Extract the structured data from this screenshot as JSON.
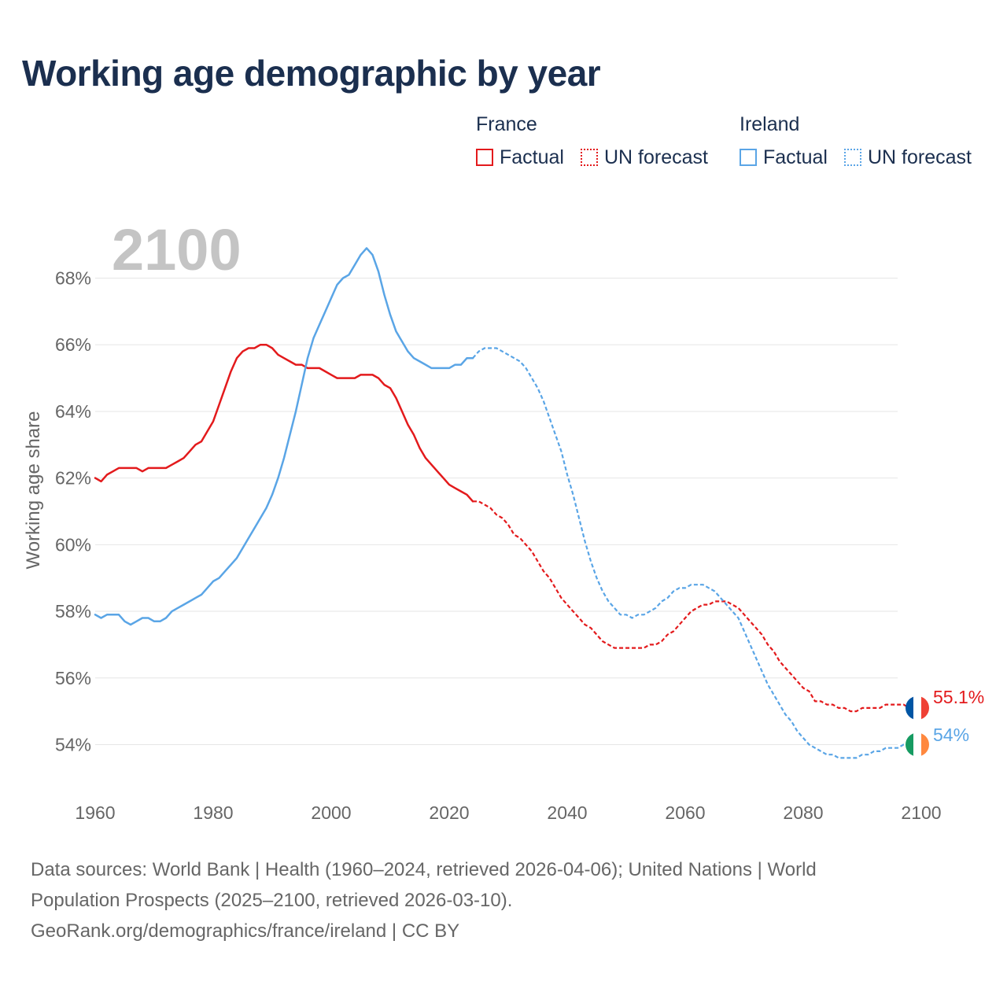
{
  "title": "Working age demographic by year",
  "legend": {
    "groups": [
      {
        "name": "France",
        "color": "#e31a1c",
        "factual": "Factual",
        "forecast": "UN forecast"
      },
      {
        "name": "Ireland",
        "color": "#5aa5e6",
        "factual": "Factual",
        "forecast": "UN forecast"
      }
    ]
  },
  "chart_data": {
    "type": "line",
    "title": "Working age demographic by year",
    "ylabel": "Working age share",
    "xlabel": "",
    "xlim": [
      1960,
      2100
    ],
    "ylim": [
      52.5,
      69.5
    ],
    "x_ticks": [
      1960,
      1980,
      2000,
      2020,
      2040,
      2060,
      2080,
      2100
    ],
    "x_tick_labels": [
      "1960",
      "1980",
      "2000",
      "2020",
      "2040",
      "2060",
      "2080",
      "2100"
    ],
    "y_ticks": [
      54,
      56,
      58,
      60,
      62,
      64,
      66,
      68
    ],
    "y_tick_labels": [
      "54%",
      "56%",
      "58%",
      "60%",
      "62%",
      "64%",
      "66%",
      "68%"
    ],
    "year_watermark": "2100",
    "factual_end_year": 2024,
    "series": [
      {
        "name": "France",
        "color": "#e31a1c",
        "flag": [
          "#0055a4",
          "#ffffff",
          "#ef4135"
        ],
        "end_label": "55.1%",
        "points": [
          [
            1960,
            62.0
          ],
          [
            1961,
            61.9
          ],
          [
            1962,
            62.1
          ],
          [
            1963,
            62.2
          ],
          [
            1964,
            62.3
          ],
          [
            1965,
            62.3
          ],
          [
            1966,
            62.3
          ],
          [
            1967,
            62.3
          ],
          [
            1968,
            62.2
          ],
          [
            1969,
            62.3
          ],
          [
            1970,
            62.3
          ],
          [
            1971,
            62.3
          ],
          [
            1972,
            62.3
          ],
          [
            1973,
            62.4
          ],
          [
            1974,
            62.5
          ],
          [
            1975,
            62.6
          ],
          [
            1976,
            62.8
          ],
          [
            1977,
            63.0
          ],
          [
            1978,
            63.1
          ],
          [
            1979,
            63.4
          ],
          [
            1980,
            63.7
          ],
          [
            1981,
            64.2
          ],
          [
            1982,
            64.7
          ],
          [
            1983,
            65.2
          ],
          [
            1984,
            65.6
          ],
          [
            1985,
            65.8
          ],
          [
            1986,
            65.9
          ],
          [
            1987,
            65.9
          ],
          [
            1988,
            66.0
          ],
          [
            1989,
            66.0
          ],
          [
            1990,
            65.9
          ],
          [
            1991,
            65.7
          ],
          [
            1992,
            65.6
          ],
          [
            1993,
            65.5
          ],
          [
            1994,
            65.4
          ],
          [
            1995,
            65.4
          ],
          [
            1996,
            65.3
          ],
          [
            1997,
            65.3
          ],
          [
            1998,
            65.3
          ],
          [
            1999,
            65.2
          ],
          [
            2000,
            65.1
          ],
          [
            2001,
            65.0
          ],
          [
            2002,
            65.0
          ],
          [
            2003,
            65.0
          ],
          [
            2004,
            65.0
          ],
          [
            2005,
            65.1
          ],
          [
            2006,
            65.1
          ],
          [
            2007,
            65.1
          ],
          [
            2008,
            65.0
          ],
          [
            2009,
            64.8
          ],
          [
            2010,
            64.7
          ],
          [
            2011,
            64.4
          ],
          [
            2012,
            64.0
          ],
          [
            2013,
            63.6
          ],
          [
            2014,
            63.3
          ],
          [
            2015,
            62.9
          ],
          [
            2016,
            62.6
          ],
          [
            2017,
            62.4
          ],
          [
            2018,
            62.2
          ],
          [
            2019,
            62.0
          ],
          [
            2020,
            61.8
          ],
          [
            2021,
            61.7
          ],
          [
            2022,
            61.6
          ],
          [
            2023,
            61.5
          ],
          [
            2024,
            61.3
          ],
          [
            2025,
            61.3
          ],
          [
            2026,
            61.2
          ],
          [
            2027,
            61.1
          ],
          [
            2028,
            60.9
          ],
          [
            2029,
            60.8
          ],
          [
            2030,
            60.6
          ],
          [
            2031,
            60.3
          ],
          [
            2032,
            60.2
          ],
          [
            2033,
            60.0
          ],
          [
            2034,
            59.8
          ],
          [
            2035,
            59.5
          ],
          [
            2036,
            59.2
          ],
          [
            2037,
            59.0
          ],
          [
            2038,
            58.7
          ],
          [
            2039,
            58.4
          ],
          [
            2040,
            58.2
          ],
          [
            2041,
            58.0
          ],
          [
            2042,
            57.8
          ],
          [
            2043,
            57.6
          ],
          [
            2044,
            57.5
          ],
          [
            2045,
            57.3
          ],
          [
            2046,
            57.1
          ],
          [
            2047,
            57.0
          ],
          [
            2048,
            56.9
          ],
          [
            2049,
            56.9
          ],
          [
            2050,
            56.9
          ],
          [
            2051,
            56.9
          ],
          [
            2052,
            56.9
          ],
          [
            2053,
            56.9
          ],
          [
            2054,
            57.0
          ],
          [
            2055,
            57.0
          ],
          [
            2056,
            57.1
          ],
          [
            2057,
            57.3
          ],
          [
            2058,
            57.4
          ],
          [
            2059,
            57.6
          ],
          [
            2060,
            57.8
          ],
          [
            2061,
            58.0
          ],
          [
            2062,
            58.1
          ],
          [
            2063,
            58.2
          ],
          [
            2064,
            58.2
          ],
          [
            2065,
            58.3
          ],
          [
            2066,
            58.3
          ],
          [
            2067,
            58.3
          ],
          [
            2068,
            58.2
          ],
          [
            2069,
            58.1
          ],
          [
            2070,
            57.9
          ],
          [
            2071,
            57.7
          ],
          [
            2072,
            57.5
          ],
          [
            2073,
            57.3
          ],
          [
            2074,
            57.0
          ],
          [
            2075,
            56.8
          ],
          [
            2076,
            56.5
          ],
          [
            2077,
            56.3
          ],
          [
            2078,
            56.1
          ],
          [
            2079,
            55.9
          ],
          [
            2080,
            55.7
          ],
          [
            2081,
            55.6
          ],
          [
            2082,
            55.3
          ],
          [
            2083,
            55.3
          ],
          [
            2084,
            55.2
          ],
          [
            2085,
            55.2
          ],
          [
            2086,
            55.1
          ],
          [
            2087,
            55.1
          ],
          [
            2088,
            55.0
          ],
          [
            2089,
            55.0
          ],
          [
            2090,
            55.1
          ],
          [
            2091,
            55.1
          ],
          [
            2092,
            55.1
          ],
          [
            2093,
            55.1
          ],
          [
            2094,
            55.2
          ],
          [
            2095,
            55.2
          ],
          [
            2096,
            55.2
          ],
          [
            2097,
            55.2
          ],
          [
            2098,
            55.1
          ],
          [
            2099,
            55.1
          ],
          [
            2100,
            55.1
          ]
        ]
      },
      {
        "name": "Ireland",
        "color": "#5aa5e6",
        "flag": [
          "#169b62",
          "#ffffff",
          "#ff883e"
        ],
        "end_label": "54%",
        "points": [
          [
            1960,
            57.9
          ],
          [
            1961,
            57.8
          ],
          [
            1962,
            57.9
          ],
          [
            1963,
            57.9
          ],
          [
            1964,
            57.9
          ],
          [
            1965,
            57.7
          ],
          [
            1966,
            57.6
          ],
          [
            1967,
            57.7
          ],
          [
            1968,
            57.8
          ],
          [
            1969,
            57.8
          ],
          [
            1970,
            57.7
          ],
          [
            1971,
            57.7
          ],
          [
            1972,
            57.8
          ],
          [
            1973,
            58.0
          ],
          [
            1974,
            58.1
          ],
          [
            1975,
            58.2
          ],
          [
            1976,
            58.3
          ],
          [
            1977,
            58.4
          ],
          [
            1978,
            58.5
          ],
          [
            1979,
            58.7
          ],
          [
            1980,
            58.9
          ],
          [
            1981,
            59.0
          ],
          [
            1982,
            59.2
          ],
          [
            1983,
            59.4
          ],
          [
            1984,
            59.6
          ],
          [
            1985,
            59.9
          ],
          [
            1986,
            60.2
          ],
          [
            1987,
            60.5
          ],
          [
            1988,
            60.8
          ],
          [
            1989,
            61.1
          ],
          [
            1990,
            61.5
          ],
          [
            1991,
            62.0
          ],
          [
            1992,
            62.6
          ],
          [
            1993,
            63.3
          ],
          [
            1994,
            64.0
          ],
          [
            1995,
            64.8
          ],
          [
            1996,
            65.6
          ],
          [
            1997,
            66.2
          ],
          [
            1998,
            66.6
          ],
          [
            1999,
            67.0
          ],
          [
            2000,
            67.4
          ],
          [
            2001,
            67.8
          ],
          [
            2002,
            68.0
          ],
          [
            2003,
            68.1
          ],
          [
            2004,
            68.4
          ],
          [
            2005,
            68.7
          ],
          [
            2006,
            68.9
          ],
          [
            2007,
            68.7
          ],
          [
            2008,
            68.2
          ],
          [
            2009,
            67.5
          ],
          [
            2010,
            66.9
          ],
          [
            2011,
            66.4
          ],
          [
            2012,
            66.1
          ],
          [
            2013,
            65.8
          ],
          [
            2014,
            65.6
          ],
          [
            2015,
            65.5
          ],
          [
            2016,
            65.4
          ],
          [
            2017,
            65.3
          ],
          [
            2018,
            65.3
          ],
          [
            2019,
            65.3
          ],
          [
            2020,
            65.3
          ],
          [
            2021,
            65.4
          ],
          [
            2022,
            65.4
          ],
          [
            2023,
            65.6
          ],
          [
            2024,
            65.6
          ],
          [
            2025,
            65.8
          ],
          [
            2026,
            65.9
          ],
          [
            2027,
            65.9
          ],
          [
            2028,
            65.9
          ],
          [
            2029,
            65.8
          ],
          [
            2030,
            65.7
          ],
          [
            2031,
            65.6
          ],
          [
            2032,
            65.5
          ],
          [
            2033,
            65.3
          ],
          [
            2034,
            65.0
          ],
          [
            2035,
            64.7
          ],
          [
            2036,
            64.3
          ],
          [
            2037,
            63.8
          ],
          [
            2038,
            63.3
          ],
          [
            2039,
            62.8
          ],
          [
            2040,
            62.1
          ],
          [
            2041,
            61.5
          ],
          [
            2042,
            60.8
          ],
          [
            2043,
            60.1
          ],
          [
            2044,
            59.5
          ],
          [
            2045,
            59.0
          ],
          [
            2046,
            58.6
          ],
          [
            2047,
            58.3
          ],
          [
            2048,
            58.1
          ],
          [
            2049,
            57.9
          ],
          [
            2050,
            57.9
          ],
          [
            2051,
            57.8
          ],
          [
            2052,
            57.9
          ],
          [
            2053,
            57.9
          ],
          [
            2054,
            58.0
          ],
          [
            2055,
            58.1
          ],
          [
            2056,
            58.3
          ],
          [
            2057,
            58.4
          ],
          [
            2058,
            58.6
          ],
          [
            2059,
            58.7
          ],
          [
            2060,
            58.7
          ],
          [
            2061,
            58.8
          ],
          [
            2062,
            58.8
          ],
          [
            2063,
            58.8
          ],
          [
            2064,
            58.7
          ],
          [
            2065,
            58.6
          ],
          [
            2066,
            58.4
          ],
          [
            2067,
            58.2
          ],
          [
            2068,
            58.0
          ],
          [
            2069,
            57.8
          ],
          [
            2070,
            57.4
          ],
          [
            2071,
            57.0
          ],
          [
            2072,
            56.6
          ],
          [
            2073,
            56.2
          ],
          [
            2074,
            55.8
          ],
          [
            2075,
            55.5
          ],
          [
            2076,
            55.2
          ],
          [
            2077,
            54.9
          ],
          [
            2078,
            54.7
          ],
          [
            2079,
            54.4
          ],
          [
            2080,
            54.2
          ],
          [
            2081,
            54.0
          ],
          [
            2082,
            53.9
          ],
          [
            2083,
            53.8
          ],
          [
            2084,
            53.7
          ],
          [
            2085,
            53.7
          ],
          [
            2086,
            53.6
          ],
          [
            2087,
            53.6
          ],
          [
            2088,
            53.6
          ],
          [
            2089,
            53.6
          ],
          [
            2090,
            53.7
          ],
          [
            2091,
            53.7
          ],
          [
            2092,
            53.8
          ],
          [
            2093,
            53.8
          ],
          [
            2094,
            53.9
          ],
          [
            2095,
            53.9
          ],
          [
            2096,
            53.9
          ],
          [
            2097,
            54.0
          ],
          [
            2098,
            54.0
          ],
          [
            2099,
            54.0
          ],
          [
            2100,
            54.0
          ]
        ]
      }
    ]
  },
  "footer": {
    "line1": "Data sources: World Bank | Health (1960–2024, retrieved 2026-04-06); United Nations | World",
    "line2": "Population Prospects (2025–2100, retrieved 2026-03-10).",
    "line3": "GeoRank.org/demographics/france/ireland | CC BY"
  }
}
